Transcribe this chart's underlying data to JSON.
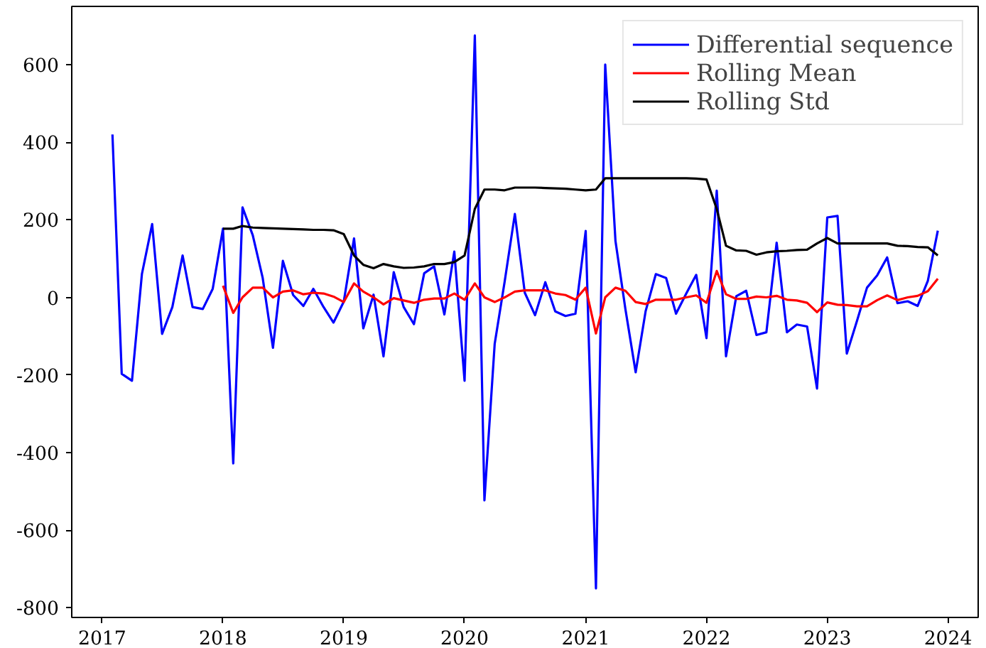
{
  "chart_data": {
    "type": "line",
    "legend": "top right",
    "grid": false,
    "line_style": "solid",
    "xlim": [
      "2016-10",
      "2024-04"
    ],
    "xticks": [
      "2017",
      "2018",
      "2019",
      "2020",
      "2021",
      "2022",
      "2023",
      "2024"
    ],
    "ylim": [
      -825,
      750
    ],
    "yticks": [
      -800,
      -600,
      -400,
      -200,
      0,
      200,
      400,
      600
    ],
    "x": [
      "2017-02",
      "2017-03",
      "2017-04",
      "2017-05",
      "2017-06",
      "2017-07",
      "2017-08",
      "2017-09",
      "2017-10",
      "2017-11",
      "2017-12",
      "2018-01",
      "2018-02",
      "2018-03",
      "2018-04",
      "2018-05",
      "2018-06",
      "2018-07",
      "2018-08",
      "2018-09",
      "2018-10",
      "2018-11",
      "2018-12",
      "2019-01",
      "2019-02",
      "2019-03",
      "2019-04",
      "2019-05",
      "2019-06",
      "2019-07",
      "2019-08",
      "2019-09",
      "2019-10",
      "2019-11",
      "2019-12",
      "2020-01",
      "2020-02",
      "2020-03",
      "2020-04",
      "2020-05",
      "2020-06",
      "2020-07",
      "2020-08",
      "2020-09",
      "2020-10",
      "2020-11",
      "2020-12",
      "2021-01",
      "2021-02",
      "2021-03",
      "2021-04",
      "2021-05",
      "2021-06",
      "2021-07",
      "2021-08",
      "2021-09",
      "2021-10",
      "2021-11",
      "2021-12",
      "2022-01",
      "2022-02",
      "2022-03",
      "2022-04",
      "2022-05",
      "2022-06",
      "2022-07",
      "2022-08",
      "2022-09",
      "2022-10",
      "2022-11",
      "2022-12",
      "2023-01",
      "2023-02",
      "2023-03",
      "2023-04",
      "2023-05",
      "2023-06",
      "2023-07",
      "2023-08",
      "2023-09",
      "2023-10",
      "2023-11",
      "2023-12"
    ],
    "series": [
      {
        "name": "Differential sequence",
        "color": "#0000ff",
        "values": [
          420,
          -197,
          -215,
          60,
          189,
          -94,
          -25,
          108,
          -25,
          -30,
          22,
          177,
          -428,
          232,
          160,
          50,
          -130,
          94,
          6,
          -22,
          22,
          -25,
          -65,
          -11,
          152,
          -80,
          7,
          -152,
          65,
          -25,
          -69,
          62,
          80,
          -44,
          118,
          -215,
          675,
          -523,
          -120,
          40,
          215,
          12,
          -46,
          39,
          -36,
          -48,
          -42,
          171,
          -750,
          600,
          145,
          -30,
          -193,
          -36,
          60,
          50,
          -42,
          10,
          58,
          -105,
          275,
          -152,
          3,
          17,
          -97,
          -90,
          141,
          -90,
          -70,
          -75,
          -235,
          206,
          210,
          -145,
          -60,
          25,
          57,
          103,
          -15,
          -10,
          -22,
          43,
          172
        ]
      },
      {
        "name": "Rolling Mean",
        "color": "#ff0000",
        "x": [
          "2018-01",
          "2018-02",
          "2018-03",
          "2018-04",
          "2018-05",
          "2018-06",
          "2018-07",
          "2018-08",
          "2018-09",
          "2018-10",
          "2018-11",
          "2018-12",
          "2019-01",
          "2019-02",
          "2019-03",
          "2019-04",
          "2019-05",
          "2019-06",
          "2019-07",
          "2019-08",
          "2019-09",
          "2019-10",
          "2019-11",
          "2019-12",
          "2020-01",
          "2020-02",
          "2020-03",
          "2020-04",
          "2020-05",
          "2020-06",
          "2020-07",
          "2020-08",
          "2020-09",
          "2020-10",
          "2020-11",
          "2020-12",
          "2021-01",
          "2021-02",
          "2021-03",
          "2021-04",
          "2021-05",
          "2021-06",
          "2021-07",
          "2021-08",
          "2021-09",
          "2021-10",
          "2021-11",
          "2021-12",
          "2022-01",
          "2022-02",
          "2022-03",
          "2022-04",
          "2022-05",
          "2022-06",
          "2022-07",
          "2022-08",
          "2022-09",
          "2022-10",
          "2022-11",
          "2022-12",
          "2023-01",
          "2023-02",
          "2023-03",
          "2023-04",
          "2023-05",
          "2023-06",
          "2023-07",
          "2023-08",
          "2023-09",
          "2023-10",
          "2023-11",
          "2023-12"
        ],
        "values": [
          30,
          -40,
          0,
          25,
          25,
          0,
          15,
          18,
          8,
          12,
          10,
          2,
          -12,
          36,
          15,
          0,
          -18,
          -2,
          -8,
          -14,
          -6,
          -3,
          -3,
          10,
          -6,
          36,
          0,
          -12,
          0,
          15,
          18,
          18,
          18,
          10,
          6,
          -6,
          25,
          -93,
          0,
          25,
          17,
          -12,
          -17,
          -6,
          -6,
          -6,
          0,
          5,
          -14,
          68,
          8,
          -4,
          -4,
          2,
          0,
          4,
          -6,
          -8,
          -14,
          -38,
          -13,
          -19,
          -20,
          -23,
          -23,
          -7,
          5,
          -7,
          0,
          4,
          16,
          48
        ]
      },
      {
        "name": "Rolling Std",
        "color": "#000000",
        "x": [
          "2018-01",
          "2018-02",
          "2018-03",
          "2018-04",
          "2018-05",
          "2018-06",
          "2018-07",
          "2018-08",
          "2018-09",
          "2018-10",
          "2018-11",
          "2018-12",
          "2019-01",
          "2019-02",
          "2019-03",
          "2019-04",
          "2019-05",
          "2019-06",
          "2019-07",
          "2019-08",
          "2019-09",
          "2019-10",
          "2019-11",
          "2019-12",
          "2020-01",
          "2020-02",
          "2020-03",
          "2020-04",
          "2020-05",
          "2020-06",
          "2020-07",
          "2020-08",
          "2020-09",
          "2020-10",
          "2020-11",
          "2020-12",
          "2021-01",
          "2021-02",
          "2021-03",
          "2021-04",
          "2021-05",
          "2021-06",
          "2021-07",
          "2021-08",
          "2021-09",
          "2021-10",
          "2021-11",
          "2021-12",
          "2022-01",
          "2022-02",
          "2022-03",
          "2022-04",
          "2022-05",
          "2022-06",
          "2022-07",
          "2022-08",
          "2022-09",
          "2022-10",
          "2022-11",
          "2022-12",
          "2023-01",
          "2023-02",
          "2023-03",
          "2023-04",
          "2023-05",
          "2023-06",
          "2023-07",
          "2023-08",
          "2023-09",
          "2023-10",
          "2023-11",
          "2023-12"
        ],
        "values": [
          177,
          177,
          184,
          180,
          179,
          178,
          177,
          176,
          175,
          174,
          174,
          173,
          163,
          108,
          84,
          75,
          86,
          80,
          76,
          77,
          80,
          86,
          86,
          91,
          108,
          228,
          278,
          278,
          276,
          283,
          283,
          283,
          282,
          281,
          280,
          278,
          276,
          278,
          307,
          307,
          307,
          307,
          307,
          307,
          307,
          307,
          307,
          306,
          304,
          228,
          133,
          121,
          120,
          110,
          116,
          119,
          120,
          122,
          123,
          139,
          153,
          139,
          139,
          139,
          139,
          139,
          139,
          133,
          132,
          130,
          129,
          108
        ]
      }
    ]
  }
}
